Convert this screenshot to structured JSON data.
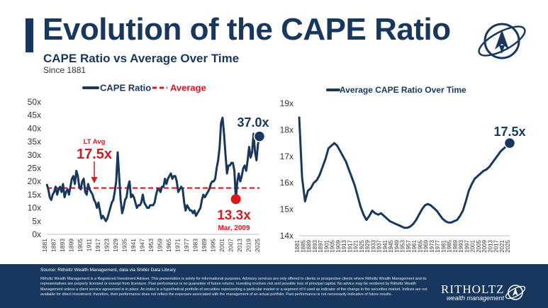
{
  "header": {
    "title": "Evolution of the CAPE Ratio",
    "subtitle": "CAPE Ratio vs Average Over Time",
    "since": "Since 1881"
  },
  "colors": {
    "navy": "#17375e",
    "red": "#e0161c",
    "white": "#ffffff"
  },
  "chart_data": [
    {
      "type": "line",
      "title": "",
      "legend": [
        "CAPE Ratio",
        "Average"
      ],
      "legend_position": "top",
      "ylim": [
        0,
        50
      ],
      "yticks": [
        0,
        5,
        10,
        15,
        20,
        25,
        30,
        35,
        40,
        45,
        50
      ],
      "ytick_labels": [
        "0x",
        "5x",
        "10x",
        "15x",
        "20x",
        "25x",
        "30x",
        "35x",
        "40x",
        "45x",
        "50x"
      ],
      "xtick_labels": [
        "1881",
        "1887",
        "1893",
        "1899",
        "1905",
        "1911",
        "1917",
        "1923",
        "1929",
        "1935",
        "1941",
        "1947",
        "1953",
        "1959",
        "1965",
        "1971",
        "1977",
        "1983",
        "1989",
        "1995",
        "2001",
        "2007",
        "2013",
        "2019",
        "2025"
      ],
      "series": [
        {
          "name": "CAPE Ratio",
          "x": [
            1881,
            1882,
            1883,
            1884,
            1885,
            1886,
            1887,
            1888,
            1889,
            1890,
            1891,
            1892,
            1893,
            1894,
            1895,
            1896,
            1897,
            1898,
            1899,
            1900,
            1901,
            1902,
            1903,
            1904,
            1905,
            1906,
            1907,
            1908,
            1909,
            1910,
            1911,
            1912,
            1913,
            1914,
            1915,
            1916,
            1917,
            1918,
            1919,
            1920,
            1921,
            1922,
            1923,
            1924,
            1925,
            1926,
            1927,
            1928,
            1929,
            1930,
            1931,
            1932,
            1933,
            1934,
            1935,
            1936,
            1937,
            1938,
            1939,
            1940,
            1941,
            1942,
            1943,
            1944,
            1945,
            1946,
            1947,
            1948,
            1949,
            1950,
            1951,
            1952,
            1953,
            1954,
            1955,
            1956,
            1957,
            1958,
            1959,
            1960,
            1961,
            1962,
            1963,
            1964,
            1965,
            1966,
            1967,
            1968,
            1969,
            1970,
            1971,
            1972,
            1973,
            1974,
            1975,
            1976,
            1977,
            1978,
            1979,
            1980,
            1981,
            1982,
            1983,
            1984,
            1985,
            1986,
            1987,
            1988,
            1989,
            1990,
            1991,
            1992,
            1993,
            1994,
            1995,
            1996,
            1997,
            1998,
            1999,
            2000,
            2001,
            2002,
            2003,
            2004,
            2005,
            2006,
            2007,
            2008,
            2009,
            2010,
            2011,
            2012,
            2013,
            2014,
            2015,
            2016,
            2017,
            2018,
            2019,
            2020,
            2021,
            2022,
            2023,
            2024,
            2025
          ],
          "values": [
            19,
            17,
            14,
            13,
            15,
            16,
            18,
            15,
            17,
            18,
            16,
            19,
            14,
            16,
            17,
            15,
            18,
            21,
            22,
            19,
            24,
            22,
            18,
            17,
            20,
            21,
            16,
            15,
            19,
            17,
            16,
            15,
            13,
            12,
            10,
            12,
            9,
            6,
            7,
            6,
            5,
            6,
            8,
            10,
            12,
            13,
            16,
            20,
            31,
            22,
            13,
            8,
            10,
            13,
            14,
            18,
            20,
            14,
            15,
            14,
            12,
            10,
            11,
            11,
            12,
            15,
            12,
            11,
            10,
            10,
            11,
            11,
            11,
            12,
            15,
            17,
            17,
            16,
            18,
            18,
            21,
            19,
            21,
            22,
            23,
            21,
            22,
            22,
            20,
            16,
            17,
            18,
            17,
            12,
            9,
            11,
            10,
            9,
            9,
            8,
            9,
            7,
            8,
            9,
            10,
            13,
            15,
            14,
            15,
            16,
            17,
            19,
            20,
            20,
            21,
            25,
            28,
            33,
            42,
            44,
            38,
            30,
            23,
            26,
            26,
            27,
            27,
            24,
            13.3,
            20,
            23,
            20,
            22,
            25,
            26,
            24,
            28,
            33,
            29,
            31,
            38,
            31,
            28,
            34,
            37
          ]
        },
        {
          "name": "Average",
          "values": [
            17.5
          ]
        }
      ],
      "annotations": {
        "lt_avg_label": "LT Avg",
        "lt_avg_value": "17.5x",
        "low_value": "13.3x",
        "low_date": "Mar, 2009",
        "current_value": "37.0x"
      }
    },
    {
      "type": "line",
      "title": "",
      "legend": [
        "Average CAPE Ratio Over Time"
      ],
      "legend_position": "top",
      "ylim": [
        14,
        19
      ],
      "yticks": [
        14,
        15,
        16,
        17,
        18,
        19
      ],
      "ytick_labels": [
        "14x",
        "15x",
        "16x",
        "17x",
        "18x",
        "19x"
      ],
      "xtick_labels": [
        "1881",
        "1885",
        "1889",
        "1893",
        "1897",
        "1901",
        "1905",
        "1909",
        "1913",
        "1917",
        "1921",
        "1925",
        "1929",
        "1933",
        "1937",
        "1941",
        "1945",
        "1949",
        "1953",
        "1957",
        "1961",
        "1965",
        "1969",
        "1973",
        "1977",
        "1981",
        "1985",
        "1989",
        "1993",
        "1997",
        "2001",
        "2005",
        "2009",
        "2013",
        "2017",
        "2021",
        "2025"
      ],
      "series": [
        {
          "name": "Average CAPE Ratio Over Time",
          "x": [
            1881,
            1883,
            1885,
            1887,
            1889,
            1891,
            1893,
            1895,
            1897,
            1899,
            1901,
            1903,
            1905,
            1907,
            1909,
            1911,
            1913,
            1915,
            1917,
            1919,
            1921,
            1923,
            1925,
            1927,
            1929,
            1931,
            1933,
            1935,
            1937,
            1939,
            1941,
            1943,
            1945,
            1947,
            1949,
            1951,
            1953,
            1955,
            1957,
            1959,
            1961,
            1963,
            1965,
            1967,
            1969,
            1971,
            1973,
            1975,
            1977,
            1979,
            1981,
            1983,
            1985,
            1987,
            1989,
            1991,
            1993,
            1995,
            1997,
            1999,
            2001,
            2003,
            2005,
            2007,
            2009,
            2011,
            2013,
            2015,
            2017,
            2019,
            2021,
            2023,
            2025
          ],
          "values": [
            18.5,
            16.2,
            15.3,
            15.7,
            15.8,
            16.0,
            16.1,
            16.3,
            16.6,
            16.9,
            17.3,
            17.4,
            17.5,
            17.4,
            17.2,
            17.0,
            16.8,
            16.5,
            16.2,
            15.9,
            15.5,
            15.1,
            14.8,
            14.6,
            14.75,
            14.95,
            14.85,
            14.8,
            14.85,
            14.75,
            14.65,
            14.55,
            14.5,
            14.45,
            14.4,
            14.35,
            14.3,
            14.3,
            14.35,
            14.45,
            14.6,
            14.8,
            15.0,
            15.15,
            15.2,
            15.15,
            15.05,
            14.95,
            14.8,
            14.65,
            14.55,
            14.5,
            14.5,
            14.55,
            14.6,
            14.75,
            14.95,
            15.3,
            15.7,
            15.95,
            16.15,
            16.25,
            16.35,
            16.45,
            16.5,
            16.6,
            16.75,
            16.9,
            17.05,
            17.2,
            17.3,
            17.4,
            17.5
          ]
        }
      ],
      "annotations": {
        "current_value": "17.5x"
      }
    }
  ],
  "footer": {
    "source": "Source: Ritholtz Wealth Management, data via Shiller Data Library",
    "disclaimer": "Ritholtz Wealth Management is a Registered Investment Adviser. This presentation is solely for informational purposes. Advisory services are only offered to clients or prospective clients where Ritholtz Wealth Management and its representatives are properly licensed or exempt from licensure. Past performance is no guarantee of future returns. Investing involves risk and possible loss of principal capital. No advice may be rendered by Ritholtz Wealth Management unless a client service agreement is in place. An index is a hypothetical portfolio of securities representing a particular market or a segment of it used as indicator of the change in the securities market. Indices are not available for direct investment; therefore, their performance does not reflect the expenses associated with the management of an actual portfolio. Past performance is not necessarily indicative of future results.",
    "brand": "RITHOLTZ",
    "tagline": "wealth management"
  }
}
